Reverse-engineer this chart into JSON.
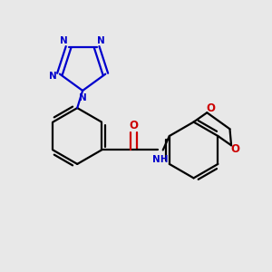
{
  "bg_color": "#e8e8e8",
  "bond_color": "#000000",
  "nitrogen_color": "#0000cc",
  "oxygen_color": "#cc0000",
  "nh_color": "#0000cc",
  "line_width": 1.6,
  "figsize": [
    3.0,
    3.0
  ],
  "dpi": 100,
  "xlim": [
    0,
    10
  ],
  "ylim": [
    0,
    10
  ]
}
